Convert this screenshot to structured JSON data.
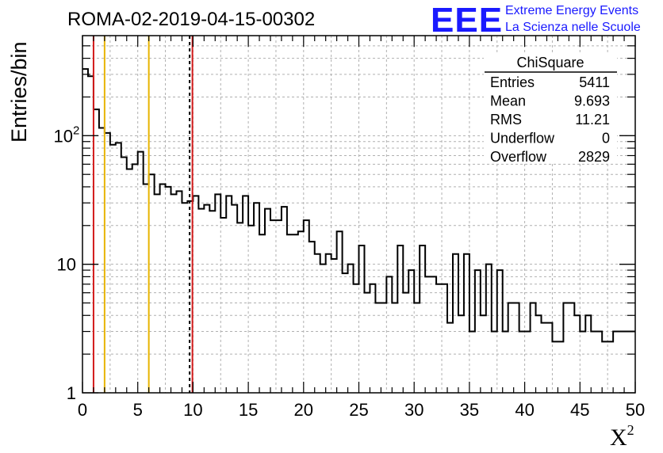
{
  "chart_data": {
    "type": "histogram",
    "title": "ROMA-02-2019-04-15-00302",
    "xlabel_symbol": "X",
    "xlabel_sup": "2",
    "ylabel": "Entries/bin",
    "xlim": [
      0,
      50
    ],
    "ylim": [
      1,
      600
    ],
    "yscale": "log",
    "grid": true,
    "x_ticks": [
      "0",
      "5",
      "10",
      "15",
      "20",
      "25",
      "30",
      "35",
      "40",
      "45",
      "50"
    ],
    "y_ticks": [
      {
        "value": 1,
        "label": "1"
      },
      {
        "value": 10,
        "label": "10"
      },
      {
        "value": 100,
        "label": "10",
        "sup": "2"
      }
    ],
    "bin_width": 0.5,
    "values": [
      330,
      290,
      160,
      115,
      105,
      85,
      88,
      68,
      55,
      60,
      75,
      42,
      50,
      35,
      42,
      40,
      35,
      37,
      30,
      31,
      34,
      27,
      29,
      26,
      35,
      23,
      34,
      29,
      21,
      34,
      20,
      30,
      17,
      27,
      22,
      22,
      28,
      17,
      17,
      18,
      22,
      15,
      12,
      10,
      12,
      11,
      18,
      8.5,
      10,
      7,
      14,
      6,
      7,
      5,
      5,
      8,
      5,
      14,
      6,
      9,
      5,
      14,
      8,
      8,
      7,
      7,
      3.5,
      12,
      4,
      12,
      3,
      9,
      4,
      10,
      3,
      9,
      3,
      5,
      5,
      3,
      3,
      5,
      4,
      3.5,
      3.5,
      2.5,
      2.5,
      5,
      5,
      4,
      3,
      4,
      3,
      3,
      2.5,
      2.5,
      3,
      3,
      3,
      3
    ],
    "reference_lines": [
      {
        "x": 1.0,
        "color": "#d31a1a",
        "style": "solid"
      },
      {
        "x": 2.0,
        "color": "#e8b400",
        "style": "solid"
      },
      {
        "x": 6.0,
        "color": "#e8b400",
        "style": "solid"
      },
      {
        "x": 9.693,
        "color": "#000000",
        "style": "dashed"
      },
      {
        "x": 9.945,
        "color": "#d31a1a",
        "style": "solid"
      }
    ],
    "stats_box": {
      "title": "ChiSquare",
      "rows": [
        {
          "label": "Entries",
          "value": "5411"
        },
        {
          "label": "Mean",
          "value": "9.693"
        },
        {
          "label": "RMS",
          "value": "11.21"
        },
        {
          "label": "Underflow",
          "value": "0"
        },
        {
          "label": "Overflow",
          "value": "2829"
        }
      ]
    }
  },
  "logo": {
    "mark": "EEE",
    "line1": "Extreme Energy Events",
    "line2": "La Scienza nelle Scuole"
  }
}
